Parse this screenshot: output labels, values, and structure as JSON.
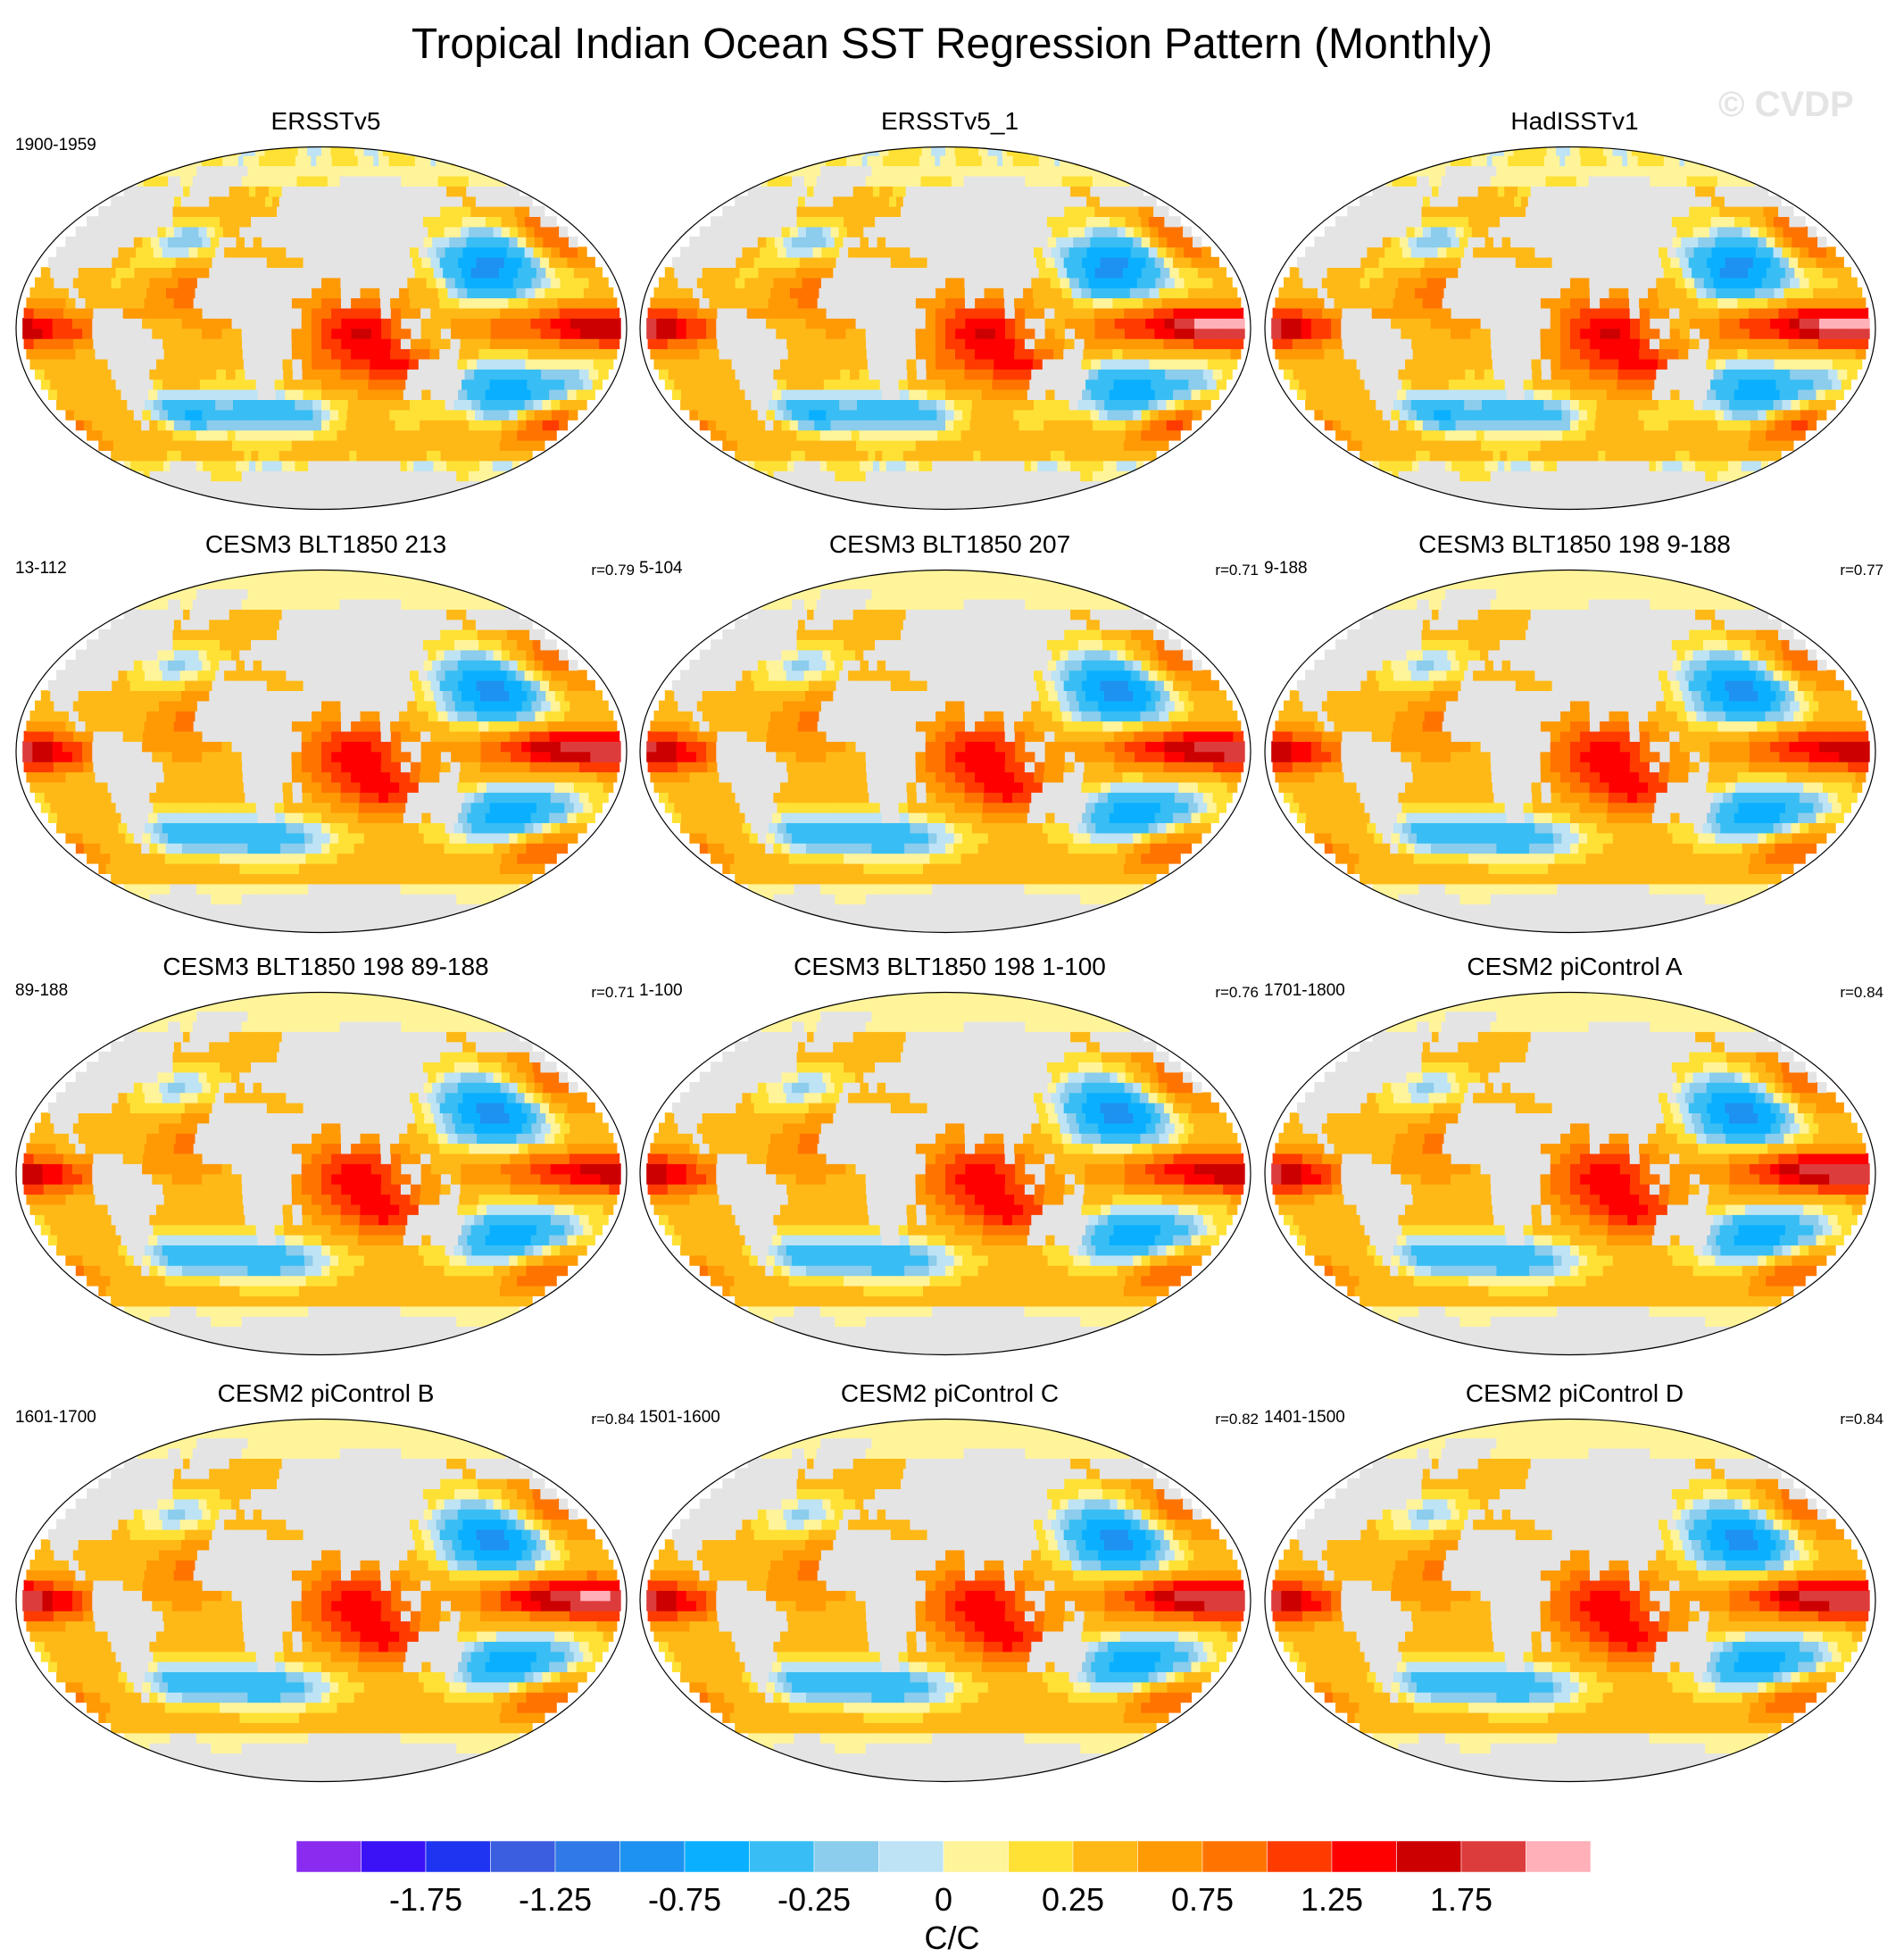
{
  "figure": {
    "title": "Tropical Indian Ocean SST Regression Pattern (Monthly)",
    "watermark": "© CVDP"
  },
  "chart_data": {
    "type": "heatmap",
    "projection": "Robinson (global map panels)",
    "panels": [
      {
        "title": "ERSSTv5",
        "period": "1900-1959",
        "r": "",
        "ref": "obs",
        "max": 1.55
      },
      {
        "title": "ERSSTv5_1",
        "period": "",
        "r": "",
        "ref": "obs",
        "max": 2.05
      },
      {
        "title": "HadISSTv1",
        "period": "",
        "r": "",
        "ref": "obs",
        "max": 2.05
      },
      {
        "title": "CESM3 BLT1850 213",
        "period": "13-112",
        "r": "r=0.79",
        "ref": "model",
        "max": 1.95
      },
      {
        "title": "CESM3 BLT1850 207",
        "period": "5-104",
        "r": "r=0.71",
        "ref": "model",
        "max": 1.85
      },
      {
        "title": "CESM3 BLT1850 198 9-188",
        "period": "9-188",
        "r": "r=0.77",
        "ref": "model",
        "max": 1.6
      },
      {
        "title": "CESM3 BLT1850 198 89-188",
        "period": "89-188",
        "r": "r=0.71",
        "ref": "model",
        "max": 1.5
      },
      {
        "title": "CESM3 BLT1850 198 1-100",
        "period": "1-100",
        "r": "r=0.76",
        "ref": "model",
        "max": 1.6
      },
      {
        "title": "CESM2 piControl A",
        "period": "1701-1800",
        "r": "r=0.84",
        "ref": "model",
        "max": 2.0
      },
      {
        "title": "CESM2 piControl B",
        "period": "1601-1700",
        "r": "r=0.84",
        "ref": "model",
        "max": 2.05
      },
      {
        "title": "CESM2 piControl C",
        "period": "1501-1600",
        "r": "r=0.82",
        "ref": "model",
        "max": 2.0
      },
      {
        "title": "CESM2 piControl D",
        "period": "1401-1500",
        "r": "r=0.84",
        "ref": "model",
        "max": 2.0
      }
    ],
    "colorbar": {
      "levels": [
        -2.0,
        -1.75,
        -1.5,
        -1.25,
        -1.0,
        -0.75,
        -0.5,
        -0.25,
        -0.1,
        0,
        0.1,
        0.25,
        0.5,
        0.75,
        1.0,
        1.25,
        1.5,
        1.75,
        2.0
      ],
      "tick_labels": [
        "-1.75",
        "-1.25",
        "-0.75",
        "-0.25",
        "0",
        "0.25",
        "0.75",
        "1.25",
        "1.75"
      ],
      "colors": [
        "#8a2cf0",
        "#3a12f5",
        "#1f34f0",
        "#3b5de0",
        "#2f7ae6",
        "#1e92f0",
        "#0ab0ff",
        "#38bef4",
        "#8cccec",
        "#bde3f5",
        "#fff49a",
        "#ffe135",
        "#ffb916",
        "#ff9a05",
        "#ff7400",
        "#ff3b00",
        "#ff0000",
        "#cc0000",
        "#dd3c3c",
        "#ffb0b8"
      ],
      "unit": "C/C"
    },
    "land_color": "#e4e4e4"
  }
}
